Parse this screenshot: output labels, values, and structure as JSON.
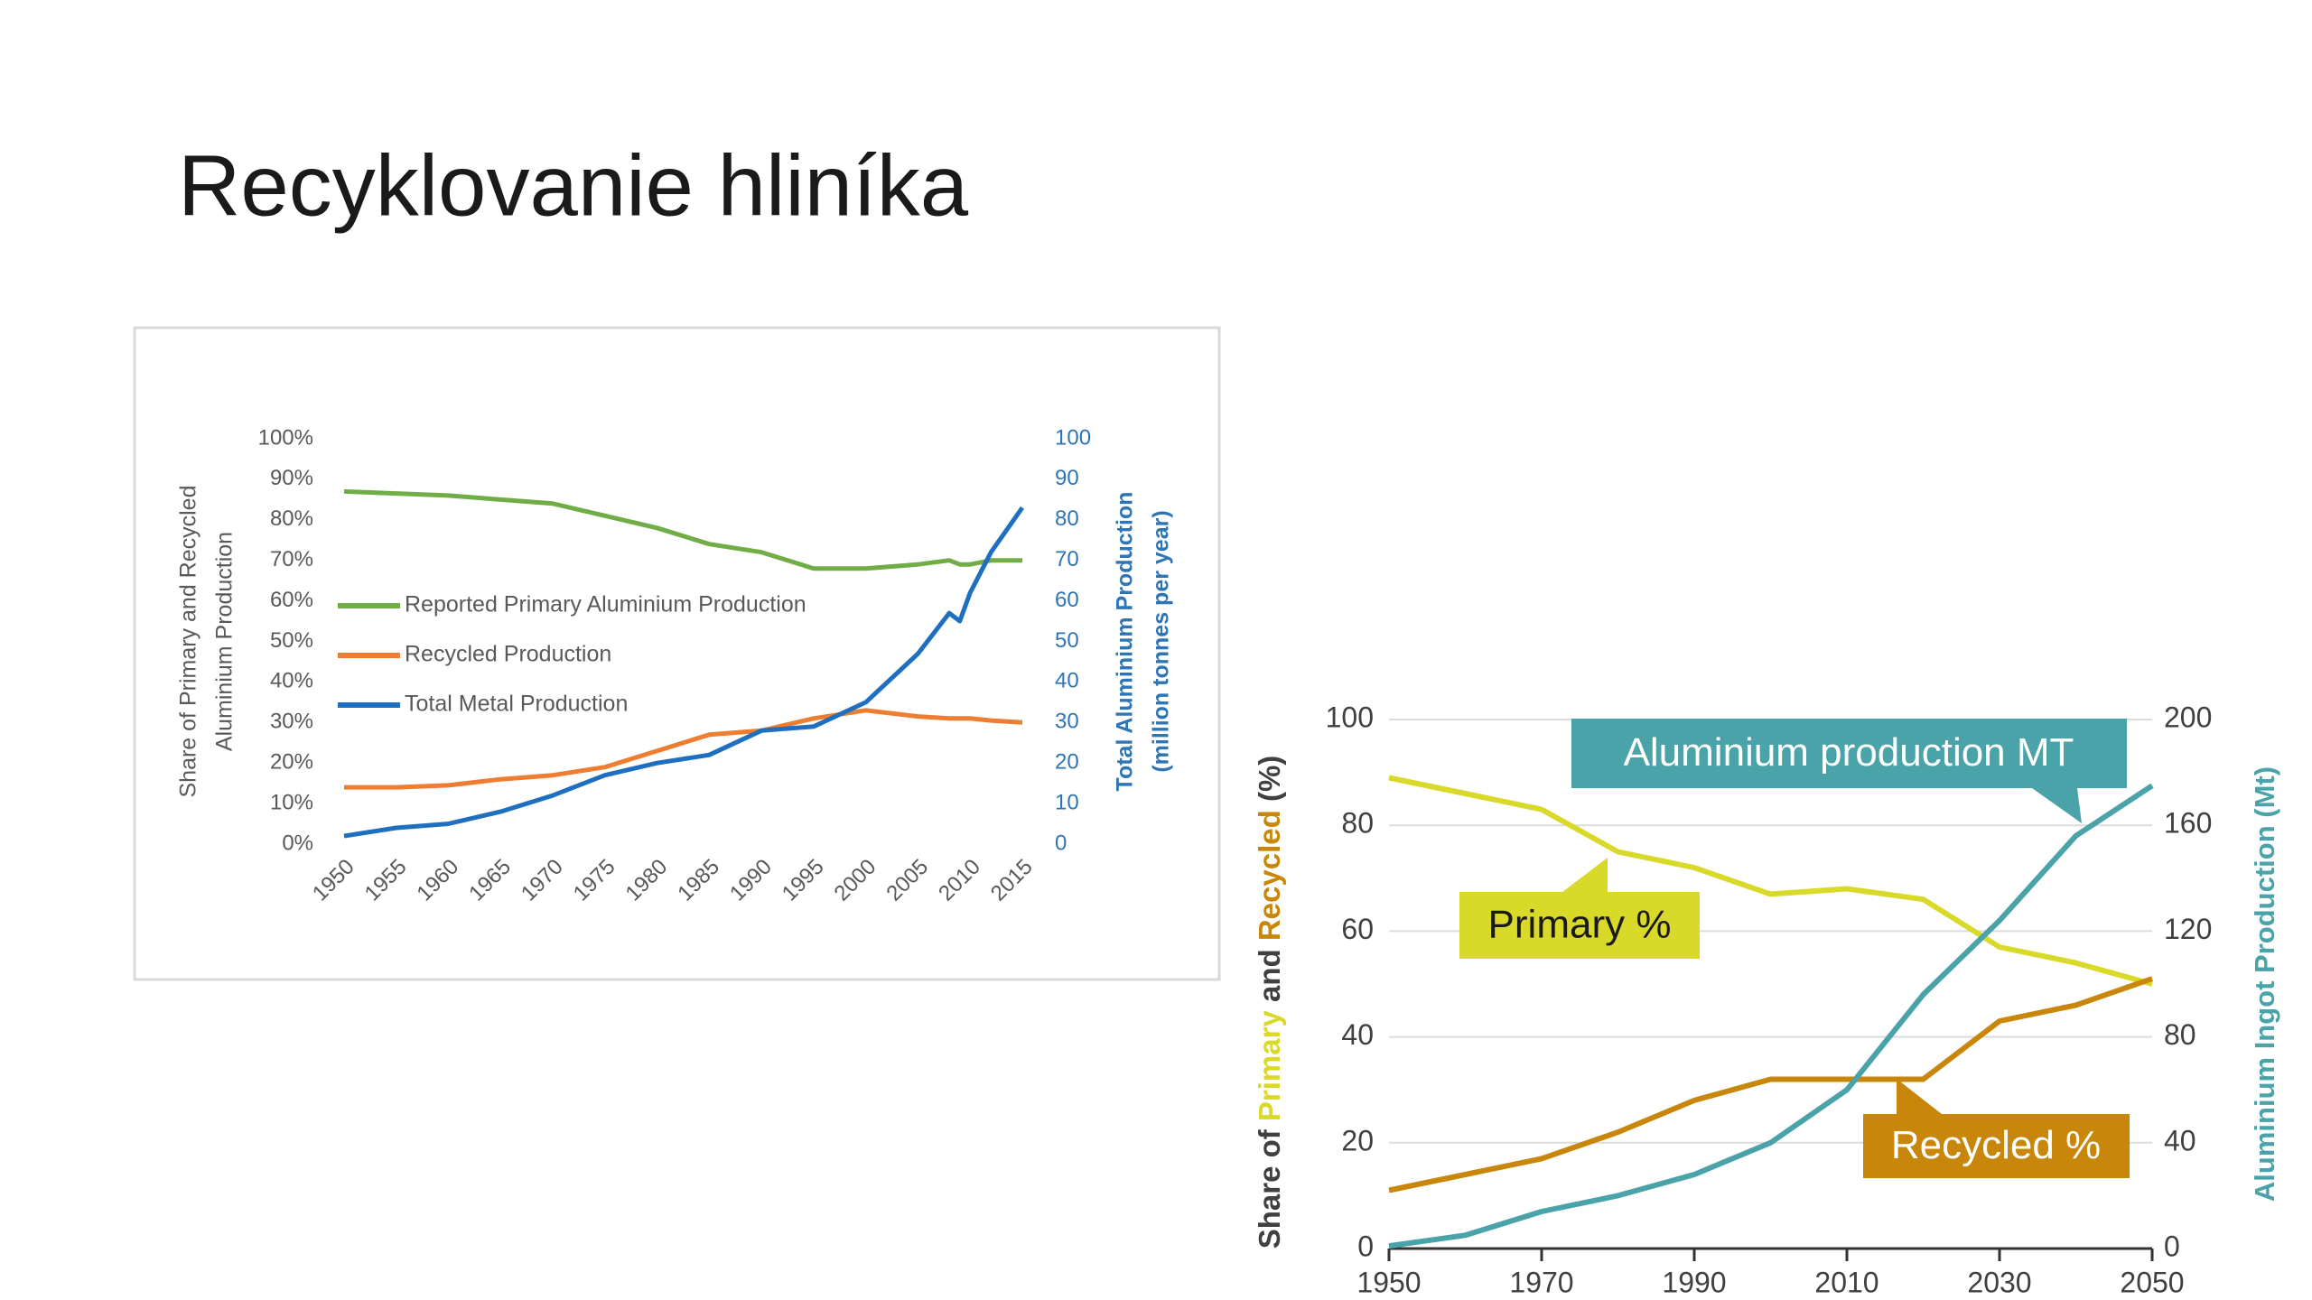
{
  "header": {
    "title": "Recyklovanie hliníka"
  },
  "chart_data": [
    {
      "type": "line",
      "ylabel": [
        "Share of Primary and Recycled",
        "Aluminium Production"
      ],
      "y2label": [
        "Total Aluminium Production",
        "(million tonnes per year)"
      ],
      "x": [
        1950,
        1955,
        1960,
        1965,
        1970,
        1975,
        1980,
        1985,
        1990,
        1995,
        2000,
        2005,
        2008,
        2009,
        2010,
        2012,
        2015
      ],
      "xlim": [
        1950,
        2015
      ],
      "xticks": [
        1950,
        1955,
        1960,
        1965,
        1970,
        1975,
        1980,
        1985,
        1990,
        1995,
        2000,
        2005,
        2010,
        2015
      ],
      "ylim": [
        0,
        100
      ],
      "yticks": [
        {
          "value": 0,
          "label": "0%"
        },
        {
          "value": 10,
          "label": "10%"
        },
        {
          "value": 20,
          "label": "20%"
        },
        {
          "value": 30,
          "label": "30%"
        },
        {
          "value": 40,
          "label": "40%"
        },
        {
          "value": 50,
          "label": "50%"
        },
        {
          "value": 60,
          "label": "60%"
        },
        {
          "value": 70,
          "label": "70%"
        },
        {
          "value": 80,
          "label": "80%"
        },
        {
          "value": 90,
          "label": "90%"
        },
        {
          "value": 100,
          "label": "100%"
        }
      ],
      "y2lim": [
        0,
        100
      ],
      "y2ticks": [
        0,
        10,
        20,
        30,
        40,
        50,
        60,
        70,
        80,
        90,
        100
      ],
      "grid": false,
      "legend": "left",
      "series": [
        {
          "name": "Reported Primary Aluminium Production",
          "color": "#70ad47",
          "values": [
            87,
            86.5,
            86,
            85,
            84,
            81,
            78,
            74,
            72,
            68,
            68,
            69,
            70,
            69,
            69,
            70,
            70
          ]
        },
        {
          "name": "Recycled Production",
          "color": "#ed7d31",
          "values": [
            14,
            14,
            14.5,
            16,
            17,
            19,
            23,
            27,
            28,
            31,
            33,
            31.5,
            31,
            31,
            31,
            30.5,
            30
          ]
        },
        {
          "name": "Total Metal Production",
          "color": "#1f6fc0",
          "axis": "y2",
          "values": [
            2,
            4,
            5,
            8,
            12,
            17,
            20,
            22,
            28,
            29,
            35,
            47,
            57,
            55,
            62,
            72,
            83
          ]
        }
      ]
    },
    {
      "type": "line",
      "ylabel": [
        {
          "text": "Share of ",
          "color": "#404040"
        },
        {
          "text": "Primary",
          "color": "#d9d92a"
        },
        {
          "text": " and ",
          "color": "#404040"
        },
        {
          "text": "Recycled",
          "color": "#c8860a"
        },
        {
          "text": " (%)",
          "color": "#404040"
        }
      ],
      "y2label": "Aluminium Ingot Production (Mt)",
      "y2label_color": "#4aa3a8",
      "x": [
        1950,
        1960,
        1970,
        1980,
        1990,
        2000,
        2010,
        2020,
        2030,
        2040,
        2050
      ],
      "xlim": [
        1950,
        2050
      ],
      "xticks": [
        1950,
        1970,
        1990,
        2010,
        2030,
        2050
      ],
      "ylim": [
        0,
        100
      ],
      "yticks": [
        0,
        20,
        40,
        60,
        80,
        100
      ],
      "y2lim": [
        0,
        200
      ],
      "y2ticks": [
        0,
        40,
        80,
        120,
        160,
        200
      ],
      "grid": true,
      "series": [
        {
          "color": "#d9d92a",
          "values": [
            89,
            86,
            83,
            75,
            72,
            67,
            68,
            66,
            57,
            54,
            50
          ]
        },
        {
          "color": "#c8860a",
          "values": [
            11,
            14,
            17,
            22,
            28,
            32,
            32,
            32,
            43,
            46,
            51
          ]
        },
        {
          "color": "#4aa3a8",
          "axis": "y2",
          "values": [
            1,
            5,
            14,
            20,
            28,
            40,
            60,
            96,
            124,
            156,
            175
          ]
        }
      ],
      "annotations": [
        {
          "text": "Aluminium production MT",
          "color": "#4aa3a8"
        },
        {
          "text": "Primary %",
          "color": "#d9d92a"
        },
        {
          "text": "Recycled %",
          "color": "#c8860a"
        }
      ]
    }
  ]
}
